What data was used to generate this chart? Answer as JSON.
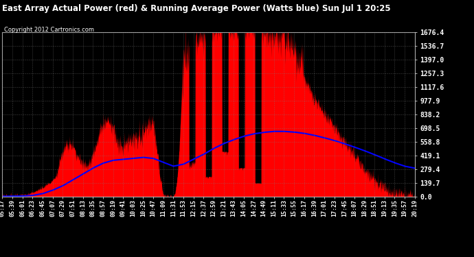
{
  "title": "East Array Actual Power (red) & Running Average Power (Watts blue) Sun Jul 1 20:25",
  "copyright": "Copyright 2012 Cartronics.com",
  "bg_color": "#000000",
  "plot_bg_color": "#000000",
  "red_color": "#FF0000",
  "blue_color": "#0000FF",
  "grid_color": "#808080",
  "text_color": "#FFFFFF",
  "title_color": "#FFFFFF",
  "ymin": 0.0,
  "ymax": 1676.4,
  "ytick_interval": 139.7,
  "xtick_labels": [
    "05:17",
    "05:39",
    "06:01",
    "06:23",
    "06:45",
    "07:07",
    "07:29",
    "07:51",
    "08:13",
    "08:35",
    "08:57",
    "09:19",
    "09:41",
    "10:03",
    "10:25",
    "10:47",
    "11:09",
    "11:31",
    "11:53",
    "12:15",
    "12:37",
    "12:59",
    "13:21",
    "13:43",
    "14:05",
    "14:27",
    "14:49",
    "15:11",
    "15:33",
    "15:55",
    "16:17",
    "16:39",
    "17:01",
    "17:23",
    "17:45",
    "18:07",
    "18:29",
    "18:51",
    "19:13",
    "19:35",
    "19:57",
    "20:19"
  ],
  "base_envelope": [
    2,
    3,
    5,
    30,
    80,
    150,
    280,
    400,
    500,
    550,
    580,
    560,
    500,
    600,
    650,
    750,
    20,
    30,
    1300,
    1500,
    1580,
    1650,
    1660,
    1670,
    1676,
    1660,
    1640,
    1600,
    1550,
    1400,
    1200,
    1000,
    850,
    700,
    560,
    420,
    280,
    160,
    80,
    30,
    8,
    2
  ],
  "running_avg": [
    3,
    4,
    6,
    12,
    30,
    65,
    110,
    170,
    230,
    290,
    340,
    370,
    380,
    390,
    400,
    390,
    350,
    310,
    330,
    380,
    430,
    490,
    540,
    580,
    615,
    640,
    655,
    665,
    665,
    658,
    645,
    625,
    600,
    572,
    540,
    505,
    468,
    428,
    385,
    345,
    310,
    290
  ]
}
